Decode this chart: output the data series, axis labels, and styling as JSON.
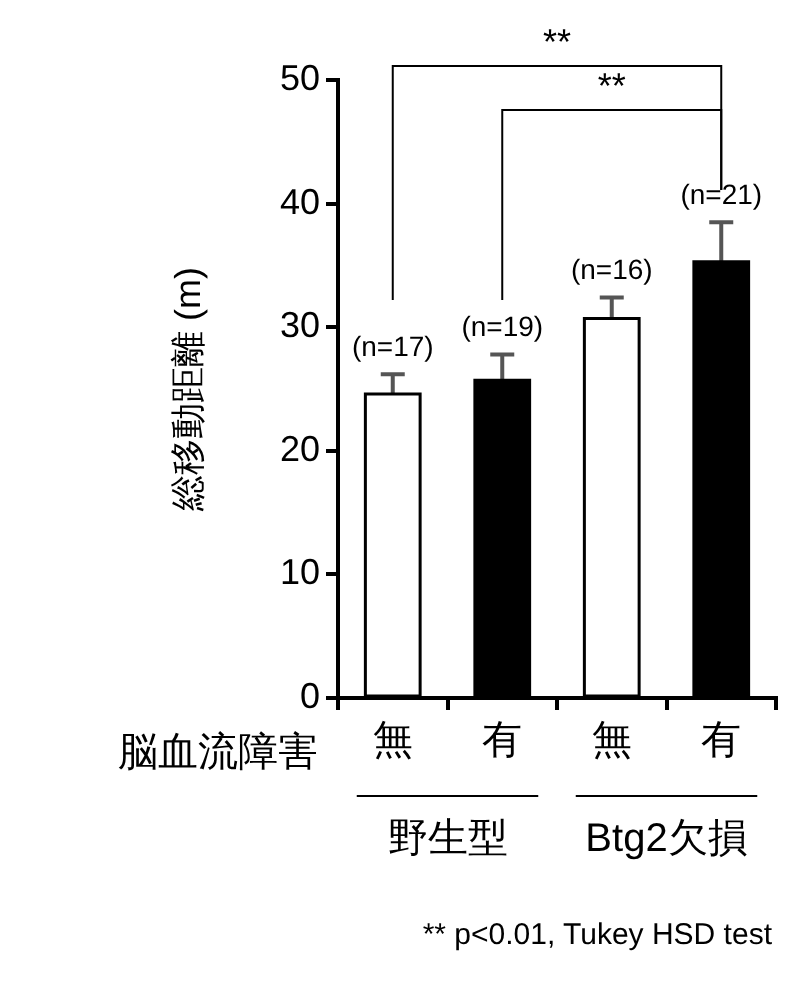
{
  "chart_data": {
    "type": "bar",
    "ylabel": "総移動距離 (m)",
    "xlabel": "脳血流障害",
    "categories": [
      "無",
      "有",
      "無",
      "有"
    ],
    "values": [
      24.6,
      25.7,
      30.7,
      35.3
    ],
    "colors": [
      "#ffffff",
      "#000000",
      "#ffffff",
      "#000000"
    ],
    "errors": [
      [
        24.6,
        26.2
      ],
      [
        25.7,
        27.8
      ],
      [
        30.7,
        32.4
      ],
      [
        35.3,
        38.5
      ]
    ],
    "ylim": [
      0,
      50
    ],
    "yticks": [
      0,
      10,
      20,
      30,
      40,
      50
    ],
    "grid": false,
    "legend": false,
    "annotations": [
      "**",
      "**",
      "野生型",
      "Btg2欠損",
      "** p<0.01, Tukey HSD test",
      "(n=17)",
      "(n=19)",
      "(n=16)",
      "(n=21)"
    ]
  }
}
